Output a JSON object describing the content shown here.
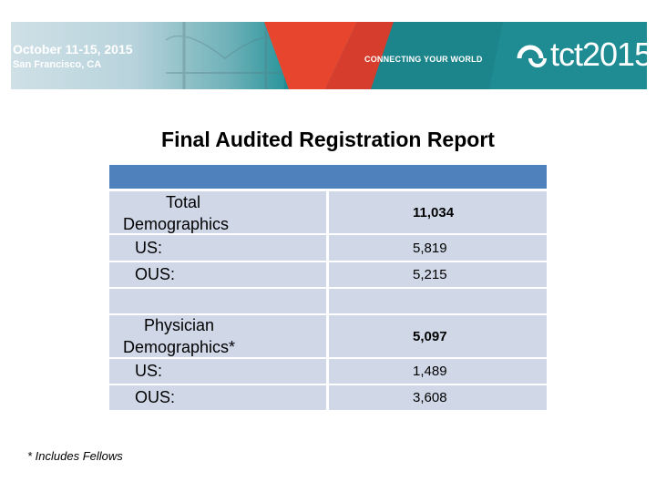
{
  "banner": {
    "dates": "October 11-15, 2015",
    "city": "San Francisco, CA",
    "tagline": "CONNECTING YOUR WORLD",
    "logo_text": "tct2015",
    "colors": {
      "teal": "#1f8c93",
      "red": "#e8452f"
    }
  },
  "title": "Final Audited Registration Report",
  "table": {
    "header_color": "#4f81bd",
    "cell_color": "#d0d8e8",
    "sections": [
      {
        "heading_line1": "Total",
        "heading_line2": "Demographics",
        "total": "11,034",
        "rows": [
          {
            "label": "US:",
            "value": "5,819"
          },
          {
            "label": "OUS:",
            "value": "5,215"
          }
        ]
      },
      {
        "heading_line1": "Physician",
        "heading_line2": "Demographics*",
        "total": "5,097",
        "rows": [
          {
            "label": "US:",
            "value": "1,489"
          },
          {
            "label": "OUS:",
            "value": "3,608"
          }
        ]
      }
    ]
  },
  "footnote": "* Includes Fellows"
}
